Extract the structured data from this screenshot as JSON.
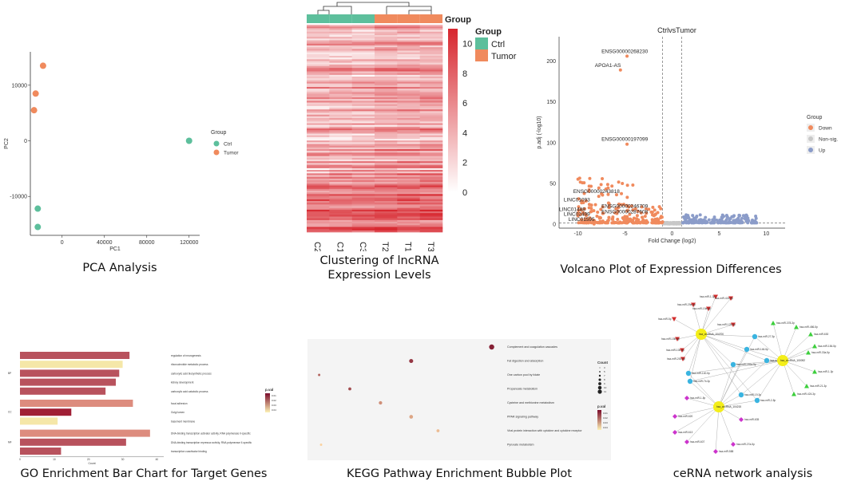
{
  "colors": {
    "ctrl": "#5dbf9c",
    "tumor": "#f08a5d",
    "down": "#f08a5d",
    "nonsig": "#c8c8c8",
    "up": "#8b9cc9",
    "heat_high": "#d7262e",
    "heat_low": "#ffffff",
    "go_bar": "#b8525d",
    "go_bar_light": "#f5e7a8"
  },
  "captions": {
    "pca": "PCA Analysis",
    "heatmap": "Clustering of lncRNA Expression Levels",
    "volcano": "Volcano Plot of Expression Differences",
    "go": "GO Enrichment Bar Chart for Target Genes",
    "kegg": "KEGG Pathway Enrichment Bubble Plot",
    "cerna": "ceRNA network analysis"
  },
  "chart_data": [
    {
      "type": "scatter",
      "id": "pca",
      "xlabel": "PC1",
      "ylabel": "PC2",
      "xlim": [
        -30000,
        130000
      ],
      "ylim": [
        -17000,
        16000
      ],
      "xticks": [
        0,
        40000,
        80000,
        120000
      ],
      "yticks": [
        10000,
        0,
        -10000
      ],
      "legend_title": "Group",
      "legend": [
        "Ctrl",
        "Tumor"
      ],
      "series": [
        {
          "name": "Ctrl",
          "points": [
            [
              120000,
              0
            ],
            [
              -23000,
              -12200
            ],
            [
              -23000,
              -15500
            ]
          ]
        },
        {
          "name": "Tumor",
          "points": [
            [
              -18000,
              13500
            ],
            [
              -25000,
              8500
            ],
            [
              -26500,
              5500
            ]
          ]
        }
      ]
    },
    {
      "type": "heatmap",
      "id": "heatmap",
      "columns": [
        "C2",
        "C1",
        "C3",
        "T2",
        "T1",
        "T3"
      ],
      "groups": [
        "Ctrl",
        "Ctrl",
        "Ctrl",
        "Tumor",
        "Tumor",
        "Tumor"
      ],
      "legend_title": "Group",
      "legend": [
        "Ctrl",
        "Tumor"
      ],
      "color_scale_ticks": [
        10,
        8,
        6,
        4,
        2,
        0
      ],
      "color_range": [
        0,
        11
      ]
    },
    {
      "type": "scatter",
      "id": "volcano",
      "title": "CtrlvsTumor",
      "xlabel": "Fold Change (log2)",
      "ylabel": "p.adj (-log10)",
      "xlim": [
        -12,
        12
      ],
      "ylim": [
        -5,
        230
      ],
      "xticks": [
        -10,
        -5,
        0,
        5,
        10
      ],
      "yticks": [
        0,
        50,
        100,
        150,
        200
      ],
      "legend_title": "Group",
      "legend": [
        "Down",
        "Non-sig.",
        "Up"
      ],
      "labels": [
        {
          "text": "ENSG00000268230",
          "x": -7.5,
          "y": 210
        },
        {
          "text": "APOA1-AS",
          "x": -8.2,
          "y": 193
        },
        {
          "text": "ENSG00000197099",
          "x": -7.5,
          "y": 102
        },
        {
          "text": "ENSG00000243818",
          "x": -10.5,
          "y": 38
        },
        {
          "text": "LINC01093",
          "x": -11.5,
          "y": 28
        },
        {
          "text": "ENSG00000246709",
          "x": -7.5,
          "y": 20
        },
        {
          "text": "LINC01488",
          "x": -12,
          "y": 16
        },
        {
          "text": "ENSG00000287608",
          "x": -7.5,
          "y": 13
        },
        {
          "text": "LINC02499",
          "x": -11.5,
          "y": 10
        },
        {
          "text": "LINC01595",
          "x": -11,
          "y": 4
        }
      ]
    },
    {
      "type": "bar",
      "id": "go",
      "xlabel": "Count",
      "legend_title": "p.val",
      "legend_ticks": [
        "0.01",
        "0.02",
        "0.03",
        "0.04"
      ],
      "xticks": [
        0,
        10,
        20,
        30,
        40
      ],
      "facets": [
        "BP",
        "CC",
        "MF"
      ],
      "categories": [
        "regulation of neurogenesis",
        "ribonucleotide metabolic process",
        "carboxylic acid biosynthetic process",
        "kidney development",
        "carboxylic acid catabolic process",
        "focal adhesion",
        "Golgi lumen",
        "basement membrane",
        "DNA-binding transcription activator activity, RNA polymerase II-specific",
        "DNA-binding transcription repressor activity, RNA polymerase II-specific",
        "transcription coactivator binding"
      ],
      "values": [
        32,
        30,
        29,
        28,
        25,
        33,
        15,
        11,
        38,
        31,
        12
      ],
      "facet_of": [
        "BP",
        "BP",
        "BP",
        "BP",
        "BP",
        "CC",
        "CC",
        "CC",
        "MF",
        "MF",
        "MF"
      ]
    },
    {
      "type": "scatter",
      "id": "kegg",
      "legend_title": "Count",
      "size_legend": [
        "3",
        "5",
        "7",
        "8",
        "9",
        "10",
        "11"
      ],
      "color_legend_title": "p.val",
      "color_legend": [
        "0.01",
        "0.02",
        "0.03",
        "0.04"
      ],
      "categories": [
        "Complement and coagulation cascades",
        "Fat digestion and absorption",
        "One carbon pool by folate",
        "Propanoate metabolism",
        "Cysteine and methionine metabolism",
        "PPAR signaling pathway",
        "Viral protein interaction with cytokine and cytokine receptor",
        "Pyruvate metabolism"
      ],
      "points": [
        {
          "x": 0.094,
          "count": 11,
          "p": 0.005
        },
        {
          "x": 0.052,
          "count": 8,
          "p": 0.01
        },
        {
          "x": 0.004,
          "count": 3,
          "p": 0.02
        },
        {
          "x": 0.02,
          "count": 5,
          "p": 0.015
        },
        {
          "x": 0.036,
          "count": 6,
          "p": 0.03
        },
        {
          "x": 0.052,
          "count": 7,
          "p": 0.035
        },
        {
          "x": 0.066,
          "count": 5,
          "p": 0.04
        },
        {
          "x": 0.005,
          "count": 3,
          "p": 0.045
        }
      ]
    },
    {
      "type": "network",
      "id": "cerna",
      "hubs": [
        "hsa_circRNA_104700",
        "hsa_circRNA_100092",
        "hsa_circRNA_104215"
      ],
      "mirnas_red": [
        "hsa-miR-1-3p",
        "hsa-miR-424-5p",
        "hsa-miR-29a-3p",
        "hsa-miR-19a-5p",
        "hsa-miR-5p",
        "hsa-miR-125-5p",
        "hsa-miR-15b-5p",
        "hsa-miR-10b-3p",
        "hsa-miR-200-5p"
      ],
      "mirnas_green": [
        "hsa-miR-378-3p",
        "hsa-miR-486-5p",
        "hsa-miR-630",
        "hsa-miR-184-5p",
        "hsa-miR-33a-5p",
        "hsa-miR-1-3p",
        "hsa-miR-21-3p",
        "hsa-miR-424-3p"
      ],
      "mirnas_blue": [
        "hsa-miR-27-3p",
        "hsa-miR-146-5p",
        "hsa-miR-30-3p",
        "hsa-miR-181a-5p",
        "hsa-miR-140-5p",
        "hsa-miR-7b-3p",
        "hsa-miR-19-3p",
        "hsa-miR-2-5p"
      ],
      "mirnas_purple": [
        "hsa-miR-1-5p",
        "hsa-miR-620",
        "hsa-miR-635",
        "hsa-miR-613",
        "hsa-miR-607",
        "hsa-miR-27a-5p",
        "hsa-miR-588"
      ]
    }
  ]
}
